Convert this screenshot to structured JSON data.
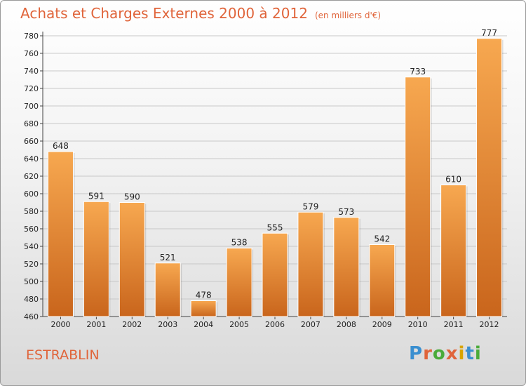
{
  "title": "Achats et Charges Externes 2000 à 2012",
  "unit": "(en milliers d'€)",
  "commune": "ESTRABLIN",
  "logo": {
    "text": "Proxiti",
    "colors": [
      "#3a8fd0",
      "#e0643a",
      "#4aab3a",
      "#e0643a",
      "#d8a400",
      "#3a8fd0",
      "#4aab3a"
    ]
  },
  "colors": {
    "title": "#e0643a",
    "bar_top": "#f7a850",
    "bar_bottom": "#c9651c",
    "grid": "#c8c8c8"
  },
  "chart_data": {
    "type": "bar",
    "title": "Achats et Charges Externes 2000 à 2012",
    "xlabel": "",
    "ylabel": "(en milliers d'€)",
    "ylim": [
      460,
      780
    ],
    "yticks": [
      460,
      480,
      500,
      520,
      540,
      560,
      580,
      600,
      620,
      640,
      660,
      680,
      700,
      720,
      740,
      760,
      780
    ],
    "grid": true,
    "categories": [
      "2000",
      "2001",
      "2002",
      "2003",
      "2004",
      "2005",
      "2006",
      "2007",
      "2008",
      "2009",
      "2010",
      "2011",
      "2012"
    ],
    "values": [
      648,
      591,
      590,
      521,
      478,
      538,
      555,
      579,
      573,
      542,
      733,
      610,
      777
    ]
  }
}
